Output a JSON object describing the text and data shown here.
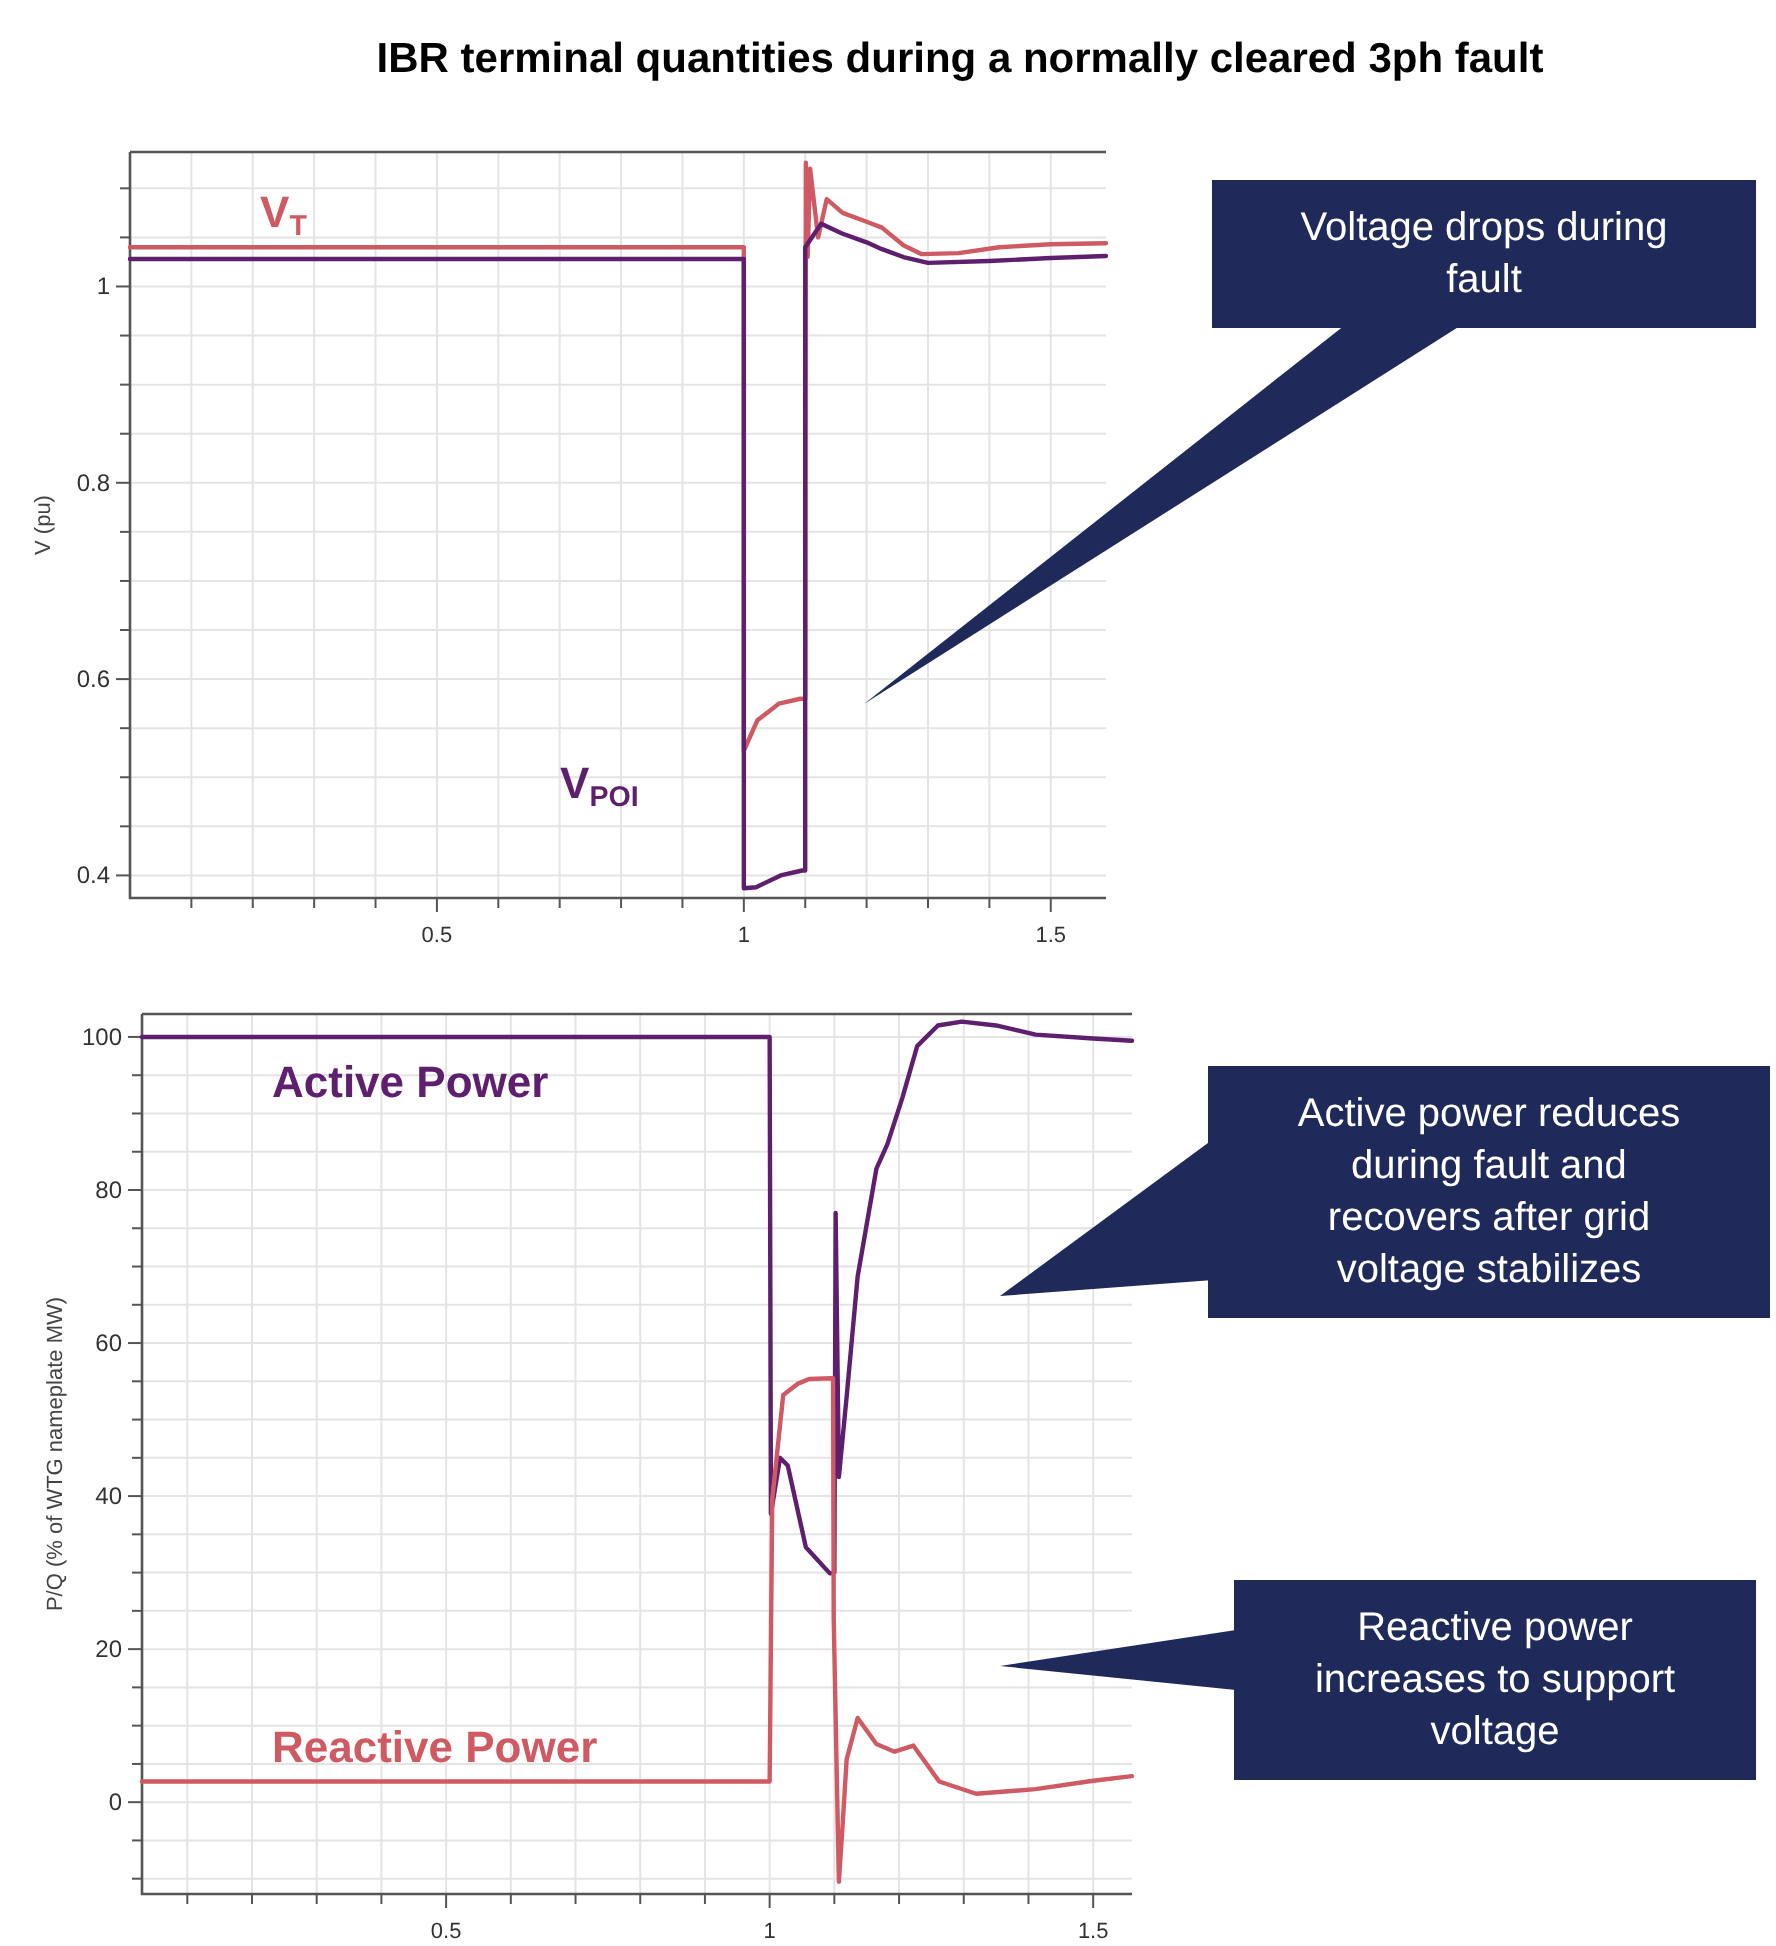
{
  "chart_data": [
    {
      "type": "line",
      "title": "IBR terminal quantities during a normally cleared 3ph fault",
      "ylabel": "V (pu)",
      "xlim": [
        0,
        1.59
      ],
      "ylim": [
        0.377,
        1.137
      ],
      "xticks": [
        {
          "value": 0.1,
          "label": null
        },
        {
          "value": 0.2,
          "label": null
        },
        {
          "value": 0.3,
          "label": null
        },
        {
          "value": 0.4,
          "label": null
        },
        0.5,
        {
          "value": 0.6,
          "label": null
        },
        {
          "value": 0.7,
          "label": null
        },
        {
          "value": 0.8,
          "label": null
        },
        {
          "value": 0.9,
          "label": null
        },
        1,
        {
          "value": 1.1,
          "label": null
        },
        {
          "value": 1.2,
          "label": null
        },
        {
          "value": 1.3,
          "label": null
        },
        {
          "value": 1.4,
          "label": null
        },
        1.5
      ],
      "yticks": [
        0.4,
        {
          "value": 0.45,
          "label": null
        },
        {
          "value": 0.5,
          "label": null
        },
        {
          "value": 0.55,
          "label": null
        },
        0.6,
        {
          "value": 0.65,
          "label": null
        },
        {
          "value": 0.7,
          "label": null
        },
        {
          "value": 0.75,
          "label": null
        },
        0.8,
        {
          "value": 0.85,
          "label": null
        },
        {
          "value": 0.9,
          "label": null
        },
        {
          "value": 0.95,
          "label": null
        },
        1,
        {
          "value": 1.05,
          "label": null
        },
        {
          "value": 1.1,
          "label": null
        }
      ],
      "grid": true,
      "line_style": "solid",
      "marker": "none",
      "series": [
        {
          "name": "V$_{T}$",
          "color": "#d05a64",
          "x": [
            0,
            1,
            1,
            1.022,
            1.057,
            1.092,
            1.1,
            1.101,
            1.104,
            1.108,
            1.121,
            1.135,
            1.161,
            1.2,
            1.225,
            1.26,
            1.289,
            1.35,
            1.416,
            1.5,
            1.59
          ],
          "values": [
            1.04,
            1.04,
            0.527,
            0.558,
            0.575,
            0.58,
            0.58,
            1.126,
            1.03,
            1.12,
            1.05,
            1.089,
            1.075,
            1.066,
            1.06,
            1.042,
            1.033,
            1.034,
            1.04,
            1.043,
            1.044
          ]
        },
        {
          "name": "V$_{POI}$",
          "color": "#5e1f6e",
          "x": [
            0,
            1,
            1,
            1.02,
            1.06,
            1.095,
            1.1,
            1.1,
            1.126,
            1.16,
            1.2,
            1.225,
            1.26,
            1.3,
            1.4,
            1.5,
            1.59
          ],
          "values": [
            1.028,
            1.028,
            0.387,
            0.388,
            0.4,
            0.405,
            0.405,
            1.04,
            1.064,
            1.054,
            1.045,
            1.038,
            1.03,
            1.024,
            1.026,
            1.029,
            1.031
          ]
        }
      ],
      "annotations": [
        "Voltage drops during fault"
      ]
    },
    {
      "type": "line",
      "ylabel": "P/Q (% of WTG nameplate MW)",
      "xlim": [
        0.03,
        1.56
      ],
      "ylim": [
        -12,
        103
      ],
      "xticks": [
        {
          "value": 0.1,
          "label": null
        },
        {
          "value": 0.2,
          "label": null
        },
        {
          "value": 0.3,
          "label": null
        },
        {
          "value": 0.4,
          "label": null
        },
        0.5,
        {
          "value": 0.6,
          "label": null
        },
        {
          "value": 0.7,
          "label": null
        },
        {
          "value": 0.8,
          "label": null
        },
        {
          "value": 0.9,
          "label": null
        },
        1,
        {
          "value": 1.1,
          "label": null
        },
        {
          "value": 1.2,
          "label": null
        },
        {
          "value": 1.3,
          "label": null
        },
        {
          "value": 1.4,
          "label": null
        },
        1.5
      ],
      "yticks": [
        {
          "value": -10,
          "label": null
        },
        {
          "value": -5,
          "label": null
        },
        0,
        {
          "value": 5,
          "label": null
        },
        {
          "value": 10,
          "label": null
        },
        {
          "value": 15,
          "label": null
        },
        20,
        {
          "value": 25,
          "label": null
        },
        {
          "value": 30,
          "label": null
        },
        {
          "value": 35,
          "label": null
        },
        40,
        {
          "value": 45,
          "label": null
        },
        {
          "value": 50,
          "label": null
        },
        {
          "value": 55,
          "label": null
        },
        60,
        {
          "value": 65,
          "label": null
        },
        {
          "value": 70,
          "label": null
        },
        {
          "value": 75,
          "label": null
        },
        80,
        {
          "value": 85,
          "label": null
        },
        {
          "value": 90,
          "label": null
        },
        {
          "value": 95,
          "label": null
        },
        100
      ],
      "grid": true,
      "line_style": "solid",
      "marker": "none",
      "series": [
        {
          "name": "Active Power",
          "color": "#5e1f6e",
          "x": [
            0.03,
            1,
            1.002,
            1.016,
            1.028,
            1.056,
            1.093,
            1.1,
            1.102,
            1.107,
            1.119,
            1.136,
            1.165,
            1.182,
            1.205,
            1.228,
            1.26,
            1.297,
            1.35,
            1.411,
            1.5,
            1.56
          ],
          "values": [
            100,
            100,
            37.7,
            45,
            44,
            33.3,
            29.9,
            30,
            77,
            42.5,
            53,
            68.7,
            82.8,
            86,
            92,
            98.8,
            101.5,
            102,
            101.5,
            100.3,
            99.8,
            99.5
          ]
        },
        {
          "name": "Reactive Power",
          "color": "#d05a64",
          "x": [
            0.03,
            1,
            1,
            1.004,
            1.021,
            1.044,
            1.061,
            1.095,
            1.098,
            1.099,
            1.107,
            1.112,
            1.119,
            1.136,
            1.165,
            1.193,
            1.222,
            1.262,
            1.319,
            1.411,
            1.5,
            1.56
          ],
          "values": [
            2.7,
            2.7,
            2.7,
            39.6,
            53.2,
            54.7,
            55.3,
            55.4,
            55.4,
            24,
            -10.4,
            -4,
            5.6,
            11,
            7.6,
            6.6,
            7.4,
            2.7,
            1.1,
            1.7,
            2.8,
            3.4
          ]
        }
      ],
      "annotations": [
        "Active power reduces during fault and recovers after grid voltage stabilizes",
        "Reactive power increases to support voltage"
      ]
    }
  ]
}
